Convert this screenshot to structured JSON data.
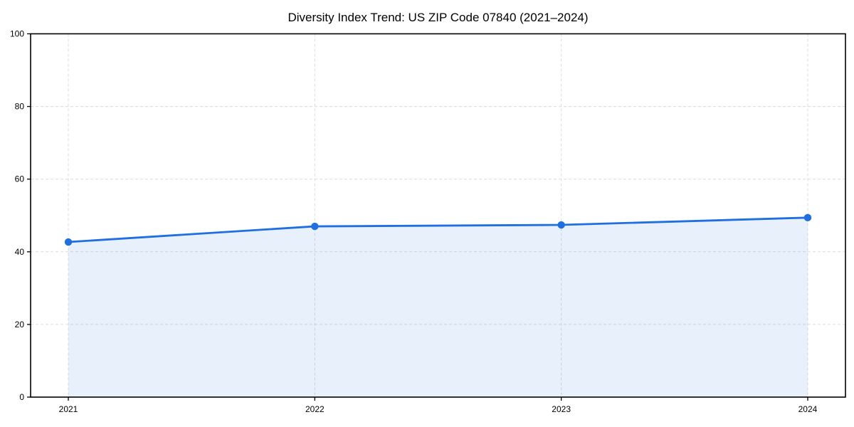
{
  "chart_data": {
    "type": "line",
    "title": "Diversity Index Trend: US ZIP Code 07840 (2021–2024)",
    "x": [
      2021,
      2022,
      2023,
      2024
    ],
    "x_tick_labels": [
      "2021",
      "2022",
      "2023",
      "2024"
    ],
    "series": [
      {
        "name": "Diversity Index",
        "values": [
          42.7,
          47.0,
          47.4,
          49.4
        ]
      }
    ],
    "xlabel": "",
    "ylabel": "",
    "ylim": [
      0,
      100
    ],
    "yticks": [
      0,
      20,
      40,
      60,
      80,
      100
    ],
    "y_tick_labels": [
      "0",
      "20",
      "40",
      "60",
      "80",
      "100"
    ],
    "grid": true,
    "grid_style": "dashed",
    "legend_position": "none",
    "marker": "circle",
    "area_fill": true,
    "colors": {
      "line": "#1f6fe0",
      "marker": "#1f6fe0",
      "fill": "#1f6fe0",
      "fill_opacity": 0.1,
      "grid": "#dcdcdc",
      "axis": "#000000",
      "text": "#000000",
      "background": "#ffffff"
    }
  }
}
